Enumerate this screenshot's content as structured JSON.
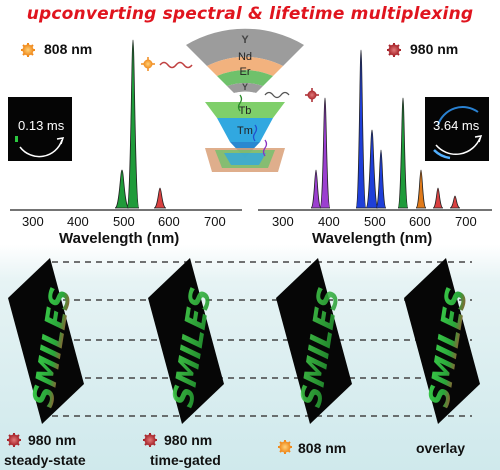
{
  "title": "upconverting spectral & lifetime multiplexing",
  "left_excitation": "808 nm",
  "right_excitation": "980 nm",
  "left_lifetime": "0.13 ms",
  "right_lifetime": "3.64 ms",
  "shell_layers": [
    "Y",
    "Nd",
    "Er",
    "Y",
    "Tb",
    "Tm"
  ],
  "spectra": [
    {
      "xlabel": "Wavelength (nm)",
      "ticks": [
        "300",
        "400",
        "500",
        "600",
        "700"
      ]
    },
    {
      "xlabel": "Wavelength (nm)",
      "ticks": [
        "300",
        "400",
        "500",
        "600",
        "700"
      ]
    }
  ],
  "images_text": "SMILES",
  "panels": [
    {
      "excitation": "980 nm",
      "caption": "steady-state"
    },
    {
      "excitation": "980 nm",
      "caption": "time-gated"
    },
    {
      "excitation": "808 nm",
      "caption": ""
    },
    {
      "excitation": "",
      "caption": "overlay"
    }
  ],
  "colors": {
    "title": "#e0141e",
    "green": "#1f9b3a",
    "red": "#d94040",
    "blue": "#1f3fd8",
    "purple": "#9b3fd0",
    "orange": "#e07a1a"
  }
}
